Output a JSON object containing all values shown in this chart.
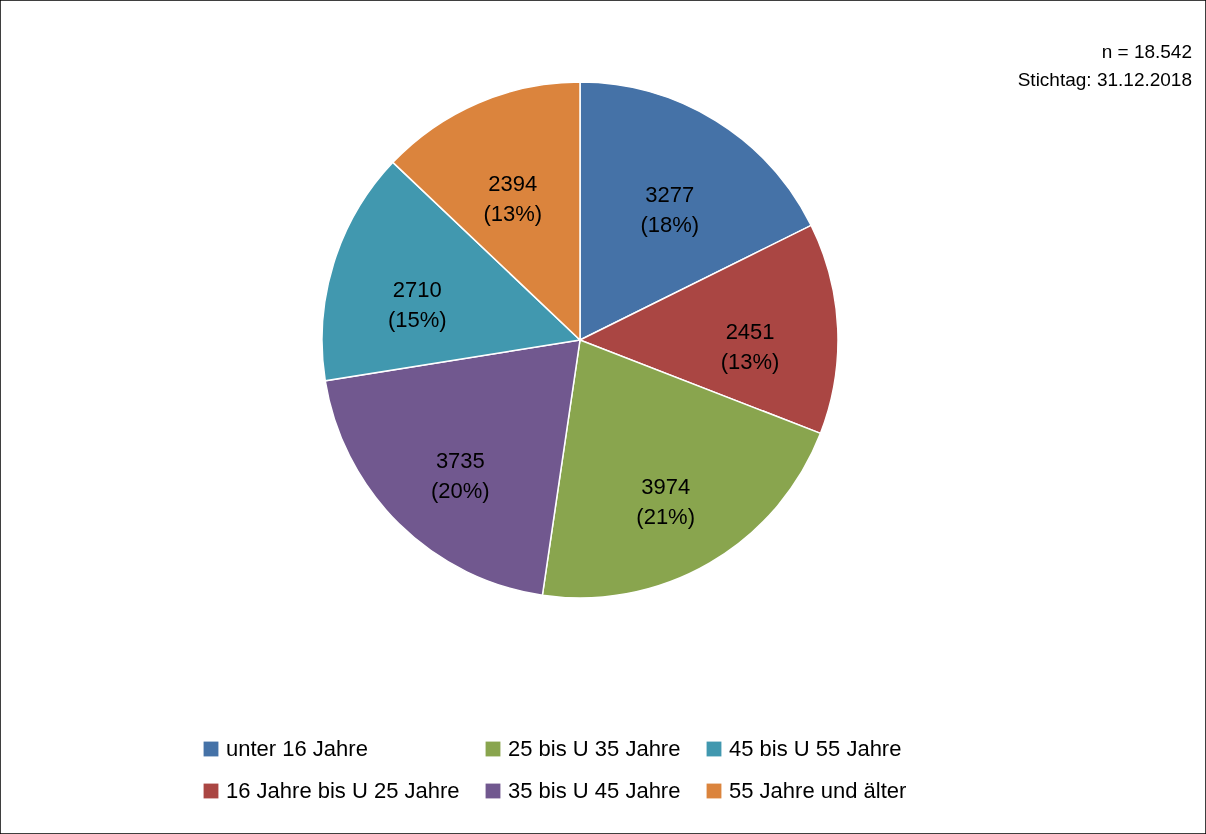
{
  "chart_data": {
    "type": "pie",
    "categories": [
      "unter 16 Jahre",
      "16 Jahre bis U 25 Jahre",
      "25 bis U 35 Jahre",
      "35 bis U 45 Jahre",
      "45 bis U 55 Jahre",
      "55 Jahre und älter"
    ],
    "values": [
      3277,
      2451,
      3974,
      3735,
      2710,
      2394
    ],
    "colors": [
      "#4572a7",
      "#aa4643",
      "#89a54e",
      "#71588f",
      "#4198af",
      "#db843d"
    ],
    "value_labels": [
      "3277 (18%)",
      "2451 (13%)",
      "3974 (21%)",
      "3735 (20%)",
      "2710 (15%)",
      "2394 (13%)"
    ],
    "annotations": [
      "n = 18.542",
      "Stichtag: 31.12.2018"
    ],
    "legend": "bottom"
  }
}
